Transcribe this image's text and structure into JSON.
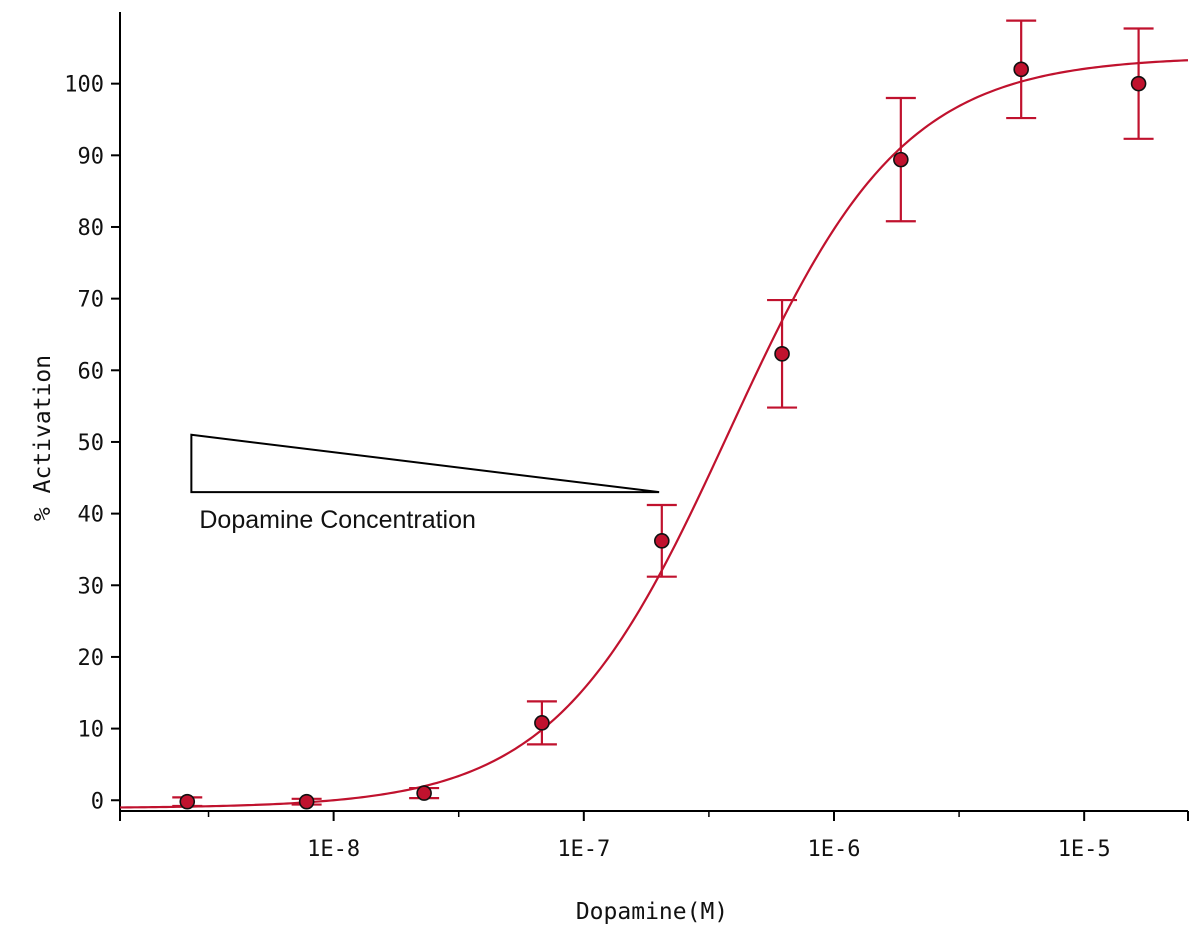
{
  "chart_data": {
    "type": "scatter",
    "title": "",
    "xlabel": "Dopamine(M)",
    "ylabel": "% Activation",
    "xscale": "log",
    "xlim": [
      1.4e-09,
      2.6e-05
    ],
    "ylim": [
      -1.5,
      110
    ],
    "x_ticks": [
      1e-08,
      1e-07,
      1e-06,
      1e-05
    ],
    "x_tick_labels": [
      "1E-8",
      "1E-7",
      "1E-6",
      "1E-5"
    ],
    "y_ticks": [
      0,
      10,
      20,
      30,
      40,
      50,
      60,
      70,
      80,
      90,
      100
    ],
    "y_tick_labels": [
      "0",
      "10",
      "20",
      "30",
      "40",
      "50",
      "60",
      "70",
      "80",
      "90",
      "100"
    ],
    "grid": false,
    "legend": "none",
    "color": "#c0122e",
    "series": [
      {
        "x": [
          2.6e-09,
          7.8e-09,
          2.3e-08,
          6.8e-08,
          2.05e-07,
          6.2e-07,
          1.85e-06,
          5.6e-06,
          1.65e-05
        ],
        "y": [
          -0.2,
          -0.2,
          1.0,
          10.8,
          36.2,
          62.3,
          89.4,
          102.0,
          100.0
        ],
        "error": [
          0.6,
          0.4,
          0.7,
          3.0,
          5.0,
          7.5,
          8.6,
          6.8,
          7.7
        ]
      }
    ],
    "fit": {
      "model": "sigmoidal dose-response",
      "bottom": -1.1,
      "top": 103.8,
      "ec50": 3.8e-07,
      "hill": 1.25
    },
    "annotation": {
      "text": "Dopamine Concentration",
      "shape": "wedge",
      "x_from": 2.7e-09,
      "x_to": 2e-07,
      "y_base": 43,
      "y_top": 51
    }
  }
}
